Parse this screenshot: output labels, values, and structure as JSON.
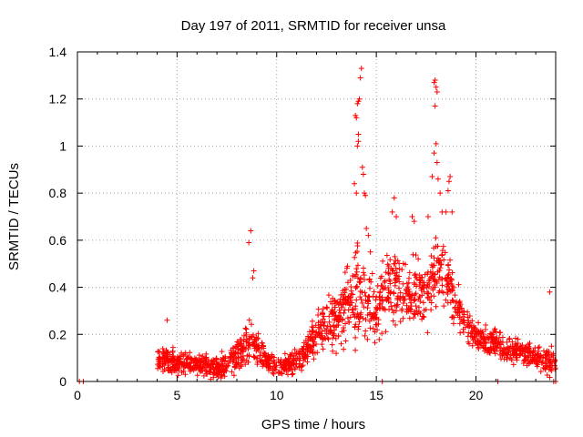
{
  "chart_data": {
    "type": "scatter",
    "title": "Day 197 of 2011, SRMTID for receiver unsa",
    "xlabel": "GPS time / hours",
    "ylabel": "SRMTID / TECUs",
    "xlim": [
      0,
      24
    ],
    "ylim": [
      0,
      1.4
    ],
    "xticks": [
      0,
      5,
      10,
      15,
      20
    ],
    "xtick_labels": [
      "0",
      "5",
      "10",
      "15",
      "20"
    ],
    "yticks": [
      0,
      0.2,
      0.4,
      0.6,
      0.8,
      1.0,
      1.2,
      1.4
    ],
    "ytick_labels": [
      "0",
      "0.2",
      "0.4",
      "0.6",
      "0.8",
      "1",
      "1.2",
      "1.4"
    ],
    "grid": true,
    "marker": "+",
    "series": [
      {
        "name": "SRMTID",
        "color": "#ff0000",
        "envelope": {
          "x": [
            4.0,
            5.0,
            6.0,
            7.0,
            8.0,
            8.6,
            9.0,
            9.5,
            10.0,
            10.5,
            11.0,
            11.5,
            12.0,
            12.5,
            13.0,
            13.5,
            14.0,
            14.3,
            14.7,
            15.0,
            15.5,
            16.0,
            16.5,
            17.0,
            17.5,
            18.0,
            18.5,
            19.0,
            19.5,
            20.0,
            21.0,
            22.0,
            23.0,
            23.5,
            24.0
          ],
          "typical": [
            0.09,
            0.08,
            0.07,
            0.06,
            0.1,
            0.18,
            0.14,
            0.09,
            0.07,
            0.07,
            0.09,
            0.14,
            0.2,
            0.26,
            0.27,
            0.32,
            0.38,
            0.36,
            0.32,
            0.28,
            0.4,
            0.42,
            0.36,
            0.4,
            0.38,
            0.45,
            0.45,
            0.32,
            0.24,
            0.18,
            0.16,
            0.13,
            0.1,
            0.09,
            0.08
          ],
          "spread": [
            0.05,
            0.05,
            0.05,
            0.05,
            0.07,
            0.1,
            0.07,
            0.05,
            0.04,
            0.04,
            0.05,
            0.07,
            0.1,
            0.12,
            0.12,
            0.16,
            0.2,
            0.2,
            0.16,
            0.14,
            0.15,
            0.15,
            0.12,
            0.15,
            0.15,
            0.17,
            0.14,
            0.1,
            0.07,
            0.06,
            0.06,
            0.05,
            0.05,
            0.06,
            0.06
          ]
        },
        "points": [
          [
            0.1,
            0.0
          ],
          [
            0.3,
            0.0
          ],
          [
            4.5,
            0.26
          ],
          [
            8.7,
            0.64
          ],
          [
            8.6,
            0.59
          ],
          [
            8.85,
            0.47
          ],
          [
            8.8,
            0.44
          ],
          [
            13.9,
            0.84
          ],
          [
            14.0,
            0.8
          ],
          [
            14.05,
            1.0
          ],
          [
            14.1,
            1.05
          ],
          [
            14.1,
            1.02
          ],
          [
            13.95,
            1.13
          ],
          [
            14.0,
            1.12
          ],
          [
            14.05,
            1.18
          ],
          [
            14.1,
            1.19
          ],
          [
            14.15,
            1.2
          ],
          [
            14.2,
            1.29
          ],
          [
            14.25,
            1.33
          ],
          [
            14.3,
            0.91
          ],
          [
            14.35,
            0.88
          ],
          [
            14.4,
            0.8
          ],
          [
            14.45,
            0.79
          ],
          [
            14.5,
            0.65
          ],
          [
            14.6,
            0.62
          ],
          [
            14.7,
            0.55
          ],
          [
            15.3,
            0.0
          ],
          [
            15.9,
            0.78
          ],
          [
            15.8,
            0.72
          ],
          [
            16.0,
            0.7
          ],
          [
            16.8,
            0.7
          ],
          [
            16.9,
            0.68
          ],
          [
            17.6,
            0.7
          ],
          [
            17.9,
            1.27
          ],
          [
            17.95,
            1.28
          ],
          [
            18.0,
            1.25
          ],
          [
            18.05,
            1.23
          ],
          [
            17.95,
            1.17
          ],
          [
            18.0,
            1.01
          ],
          [
            17.9,
            0.97
          ],
          [
            18.05,
            0.93
          ],
          [
            17.8,
            0.87
          ],
          [
            18.1,
            0.86
          ],
          [
            18.2,
            0.8
          ],
          [
            18.3,
            0.72
          ],
          [
            18.5,
            0.72
          ],
          [
            18.7,
            0.87
          ],
          [
            18.65,
            0.85
          ],
          [
            18.6,
            0.81
          ],
          [
            18.8,
            0.72
          ],
          [
            21.1,
            0.0
          ],
          [
            23.7,
            0.38
          ],
          [
            23.9,
            0.0
          ],
          [
            24.0,
            0.0
          ]
        ]
      }
    ]
  }
}
